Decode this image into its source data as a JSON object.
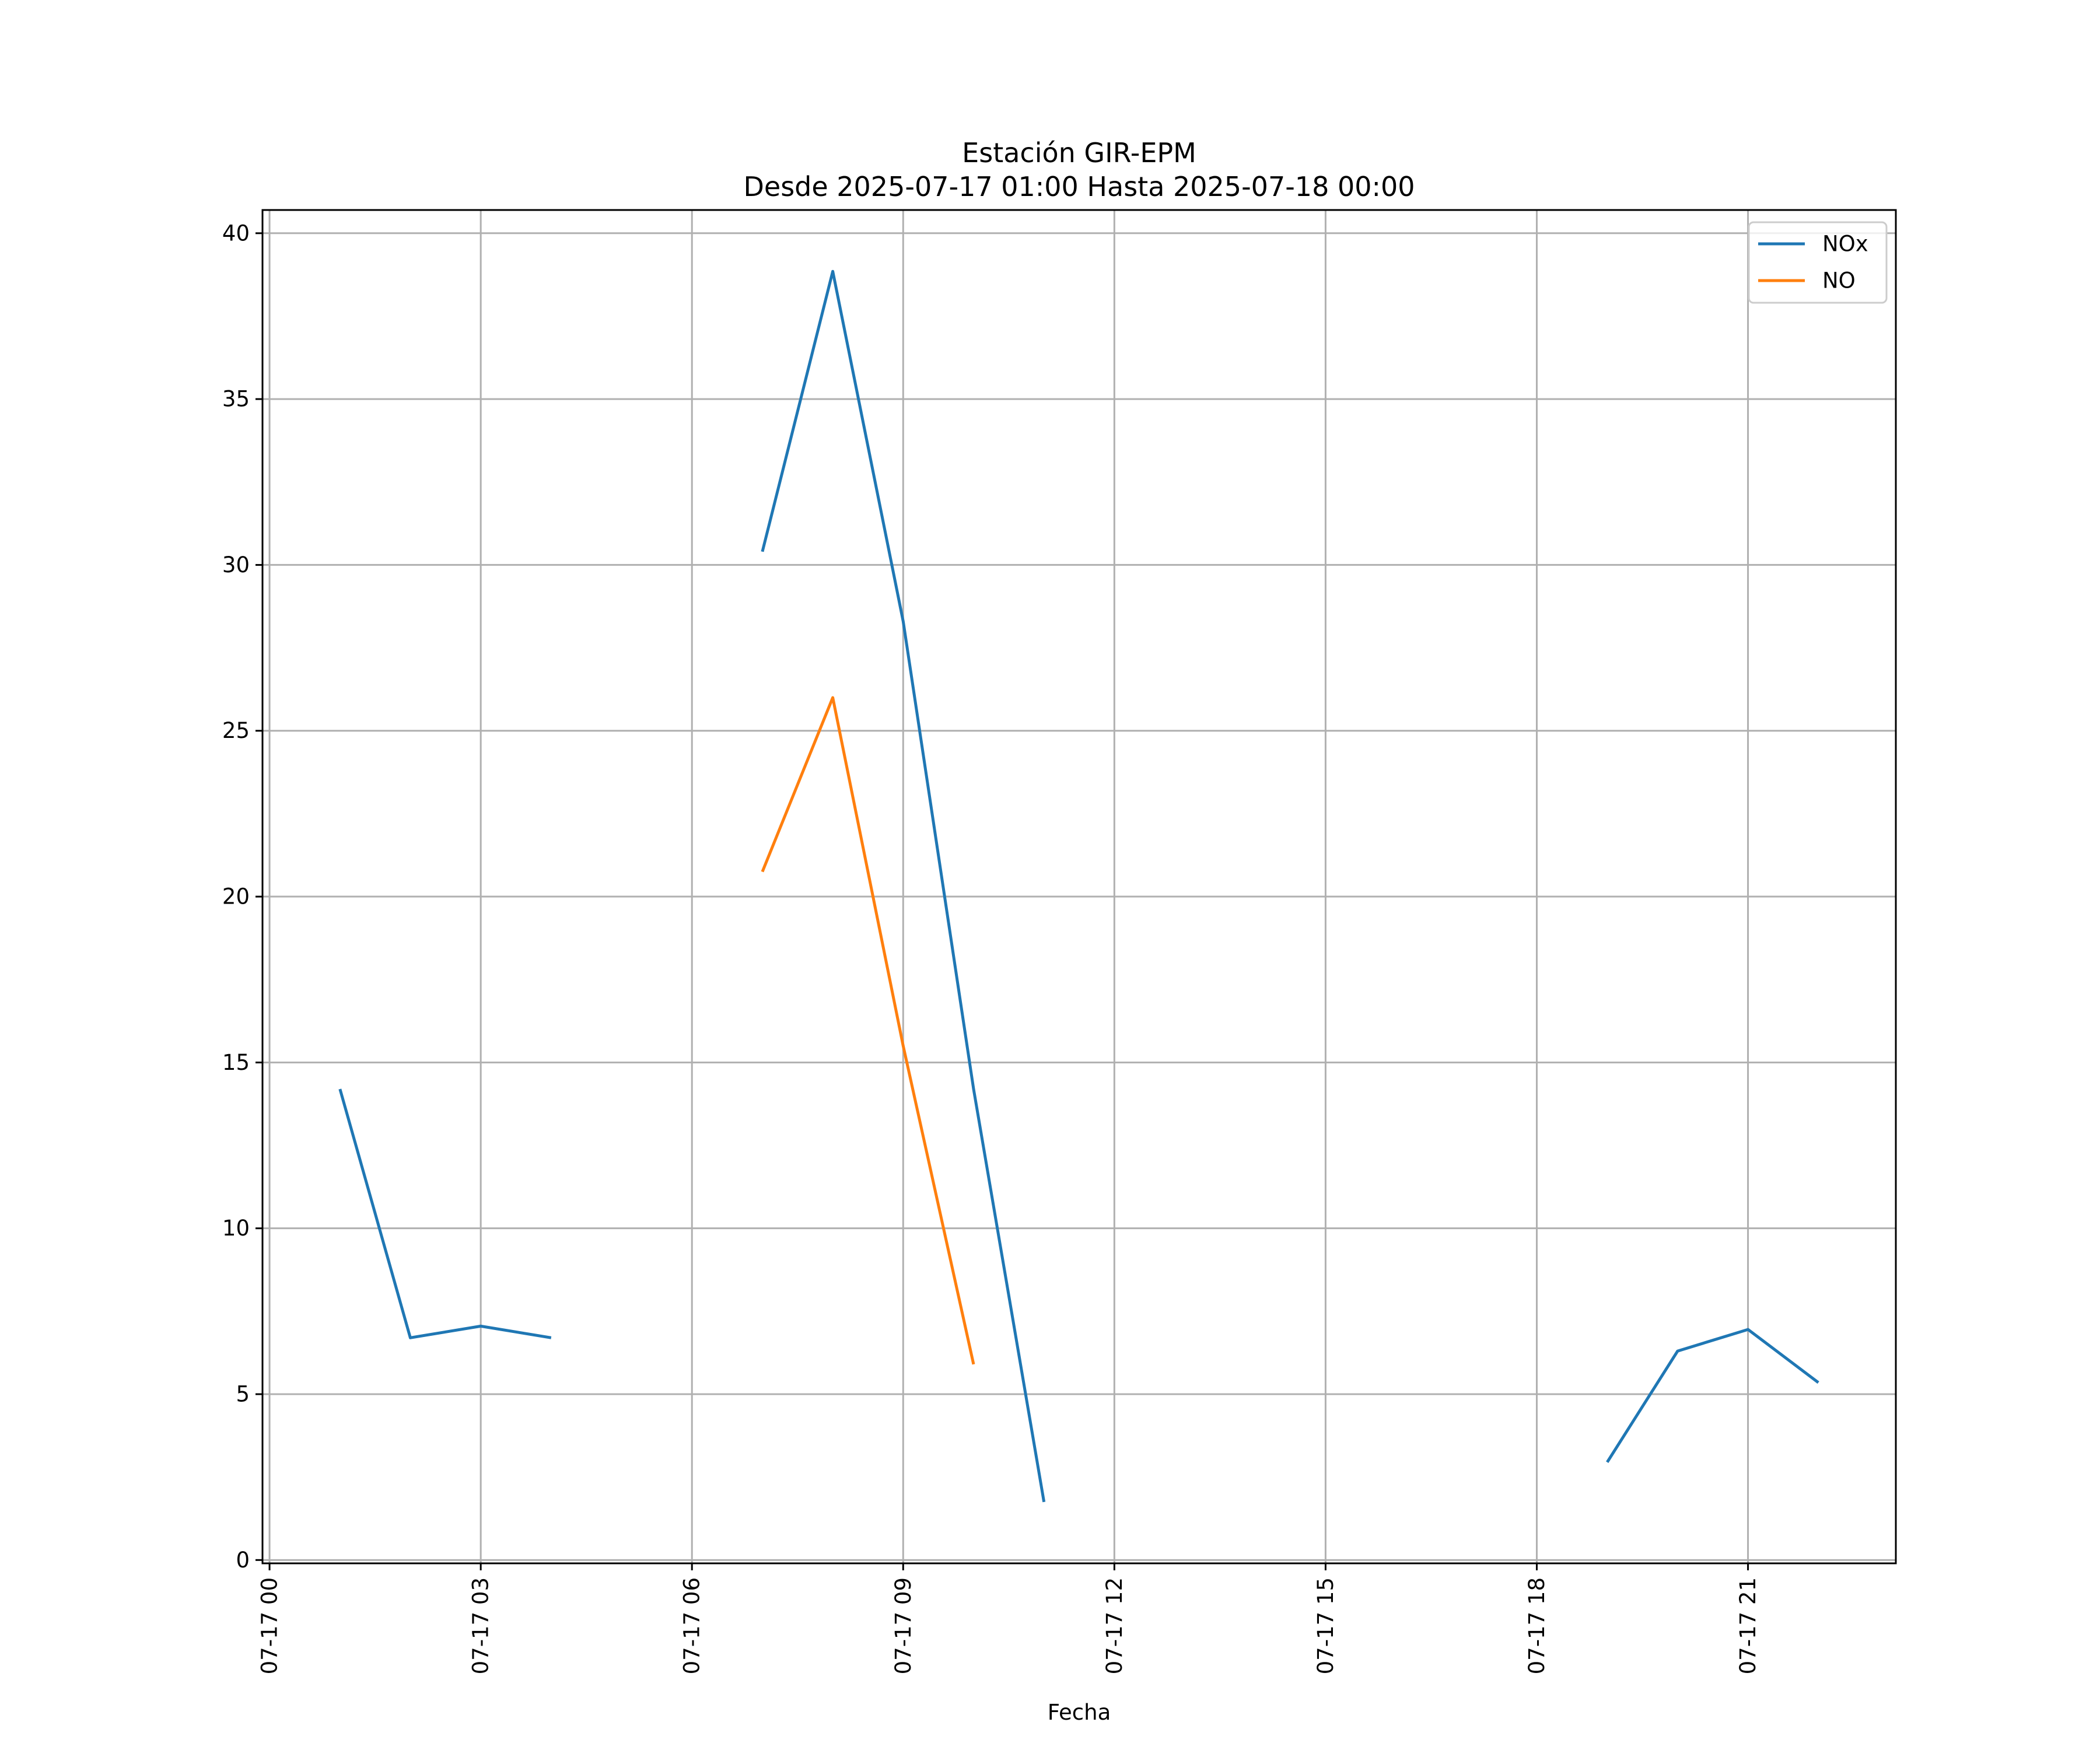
{
  "chart_data": {
    "type": "line",
    "title": "Estación GIR-EPM",
    "subtitle": "Desde 2025-07-17 01:00 Hasta 2025-07-18 00:00",
    "xlabel": "Fecha",
    "ylabel": "",
    "xlim": [
      "2025-07-16 23:54",
      "2025-07-17 23:06"
    ],
    "ylim": [
      -0.1,
      40.7
    ],
    "grid": true,
    "legend_position": "top-right",
    "x_ticks": [
      {
        "value": "2025-07-17 00:00",
        "label": "07-17 00"
      },
      {
        "value": "2025-07-17 03:00",
        "label": "07-17 03"
      },
      {
        "value": "2025-07-17 06:00",
        "label": "07-17 06"
      },
      {
        "value": "2025-07-17 09:00",
        "label": "07-17 09"
      },
      {
        "value": "2025-07-17 12:00",
        "label": "07-17 12"
      },
      {
        "value": "2025-07-17 15:00",
        "label": "07-17 15"
      },
      {
        "value": "2025-07-17 18:00",
        "label": "07-17 18"
      },
      {
        "value": "2025-07-17 21:00",
        "label": "07-17 21"
      }
    ],
    "y_ticks": [
      {
        "value": 0,
        "label": "0"
      },
      {
        "value": 5,
        "label": "5"
      },
      {
        "value": 10,
        "label": "10"
      },
      {
        "value": 15,
        "label": "15"
      },
      {
        "value": 20,
        "label": "20"
      },
      {
        "value": 25,
        "label": "25"
      },
      {
        "value": 30,
        "label": "30"
      },
      {
        "value": 35,
        "label": "35"
      },
      {
        "value": 40,
        "label": "40"
      }
    ],
    "series": [
      {
        "name": "NOx",
        "color": "#1f77b4",
        "points": [
          {
            "x": "2025-07-17 01:00",
            "y": 14.2
          },
          {
            "x": "2025-07-17 02:00",
            "y": 6.7
          },
          {
            "x": "2025-07-17 03:00",
            "y": 7.05
          },
          {
            "x": "2025-07-17 04:00",
            "y": 6.7
          },
          {
            "x": "2025-07-17 05:00",
            "y": null
          },
          {
            "x": "2025-07-17 06:00",
            "y": null
          },
          {
            "x": "2025-07-17 07:00",
            "y": 30.4
          },
          {
            "x": "2025-07-17 08:00",
            "y": 38.85
          },
          {
            "x": "2025-07-17 09:00",
            "y": 28.3
          },
          {
            "x": "2025-07-17 10:00",
            "y": 14.2
          },
          {
            "x": "2025-07-17 11:00",
            "y": 1.75
          },
          {
            "x": "2025-07-17 12:00",
            "y": null
          },
          {
            "x": "2025-07-17 13:00",
            "y": null
          },
          {
            "x": "2025-07-17 14:00",
            "y": null
          },
          {
            "x": "2025-07-17 15:00",
            "y": null
          },
          {
            "x": "2025-07-17 16:00",
            "y": null
          },
          {
            "x": "2025-07-17 17:00",
            "y": null
          },
          {
            "x": "2025-07-17 18:00",
            "y": null
          },
          {
            "x": "2025-07-17 19:00",
            "y": 2.95
          },
          {
            "x": "2025-07-17 20:00",
            "y": 6.3
          },
          {
            "x": "2025-07-17 21:00",
            "y": 6.95
          },
          {
            "x": "2025-07-17 22:00",
            "y": 5.35
          }
        ]
      },
      {
        "name": "NO",
        "color": "#ff7f0e",
        "points": [
          {
            "x": "2025-07-17 07:00",
            "y": 20.75
          },
          {
            "x": "2025-07-17 08:00",
            "y": 26.0
          },
          {
            "x": "2025-07-17 09:00",
            "y": 15.5
          },
          {
            "x": "2025-07-17 10:00",
            "y": 5.9
          }
        ]
      }
    ]
  }
}
